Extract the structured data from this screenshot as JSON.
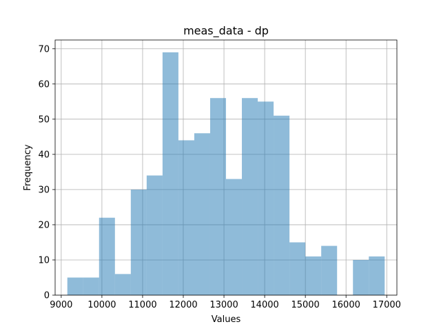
{
  "chart_data": {
    "type": "bar",
    "title": "meas_data - dp",
    "xlabel": "Values",
    "ylabel": "Frequency",
    "histogram": true,
    "bin_edges": [
      9150,
      9540,
      9930,
      10320,
      10710,
      11100,
      11490,
      11880,
      12270,
      12660,
      13050,
      13440,
      13830,
      14220,
      14610,
      15000,
      15390,
      15780,
      16170,
      16560,
      16950
    ],
    "values": [
      5,
      5,
      22,
      6,
      30,
      34,
      69,
      44,
      46,
      56,
      33,
      56,
      55,
      51,
      15,
      11,
      14,
      0,
      10,
      11
    ],
    "xlim": [
      8850,
      17250
    ],
    "ylim": [
      0,
      72.5
    ],
    "xticks": [
      9000,
      10000,
      11000,
      12000,
      13000,
      14000,
      15000,
      16000,
      17000
    ],
    "yticks": [
      0,
      10,
      20,
      30,
      40,
      50,
      60,
      70
    ],
    "bar_color": "#1f77b4",
    "bar_alpha": 0.5,
    "grid": true
  }
}
